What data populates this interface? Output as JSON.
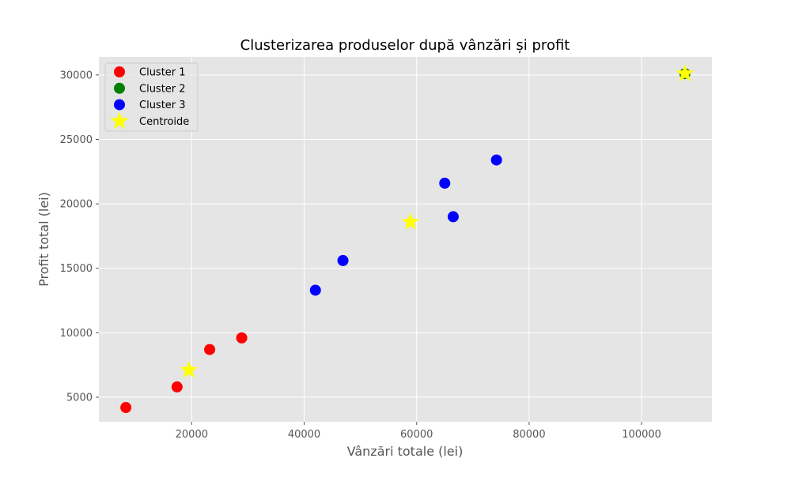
{
  "chart_data": {
    "type": "scatter",
    "title": "Clusterizarea produselor după vânzări și profit",
    "xlabel": "Vânzări totale (lei)",
    "ylabel": "Profit total (lei)",
    "xlim": [
      3500,
      112500
    ],
    "ylim": [
      3100,
      31400
    ],
    "xticks": [
      20000,
      40000,
      60000,
      80000,
      100000
    ],
    "yticks": [
      5000,
      10000,
      15000,
      20000,
      25000,
      30000
    ],
    "grid": true,
    "legend_position": "top-left",
    "series": [
      {
        "name": "Cluster 1",
        "color": "#ff0000",
        "marker": "circle",
        "points": [
          [
            8300,
            4200
          ],
          [
            17400,
            5800
          ],
          [
            23200,
            8700
          ],
          [
            28900,
            9600
          ]
        ]
      },
      {
        "name": "Cluster 2",
        "color": "#008000",
        "marker": "circle",
        "points": [
          [
            107700,
            30100
          ]
        ]
      },
      {
        "name": "Cluster 3",
        "color": "#0000ff",
        "marker": "circle",
        "points": [
          [
            42000,
            13300
          ],
          [
            46900,
            15600
          ],
          [
            65000,
            21600
          ],
          [
            66500,
            19000
          ],
          [
            74200,
            23400
          ]
        ]
      },
      {
        "name": "Centroide",
        "color": "#ffff00",
        "marker": "star",
        "points": [
          [
            19500,
            7100
          ],
          [
            58900,
            18600
          ],
          [
            107700,
            30100
          ]
        ]
      }
    ]
  }
}
